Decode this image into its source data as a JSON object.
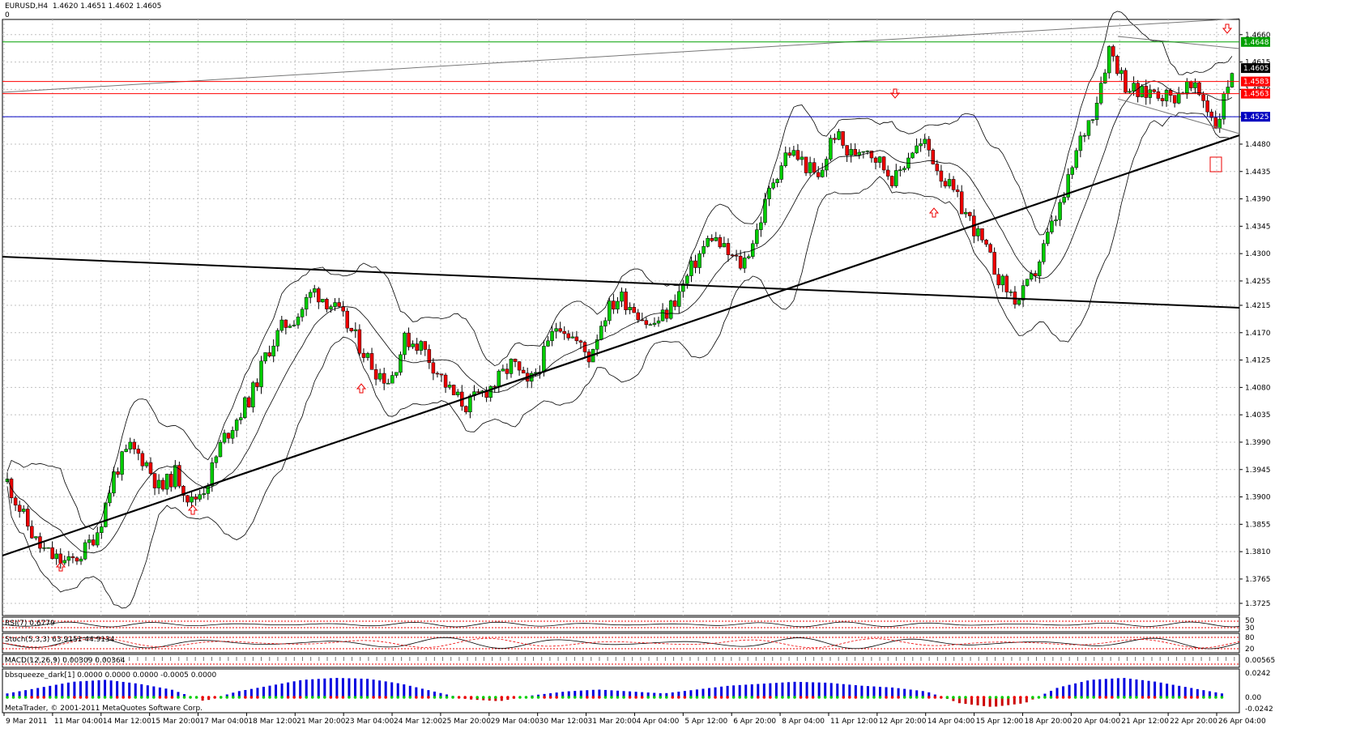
{
  "header": {
    "symbol_line": "EURUSD,H4  1.4620 1.4651 1.4602 1.4605",
    "zero": "0"
  },
  "chart_data": {
    "type": "candlestick",
    "symbol": "EURUSD",
    "timeframe": "H4",
    "last_ohlc": [
      1.462,
      1.4651,
      1.4602,
      1.4605
    ],
    "ylim": [
      1.3705,
      1.4685
    ],
    "y_ticks": [
      "1.4660",
      "1.4615",
      "1.4570",
      "1.4525",
      "1.4480",
      "1.4435",
      "1.4390",
      "1.4345",
      "1.4300",
      "1.4255",
      "1.4215",
      "1.4170",
      "1.4125",
      "1.4080",
      "1.4035",
      "1.3990",
      "1.3945",
      "1.3900",
      "1.3855",
      "1.3810",
      "1.3765",
      "1.3725"
    ],
    "x_ticks": [
      "9 Mar 2011",
      "11 Mar 04:00",
      "14 Mar 12:00",
      "15 Mar 20:00",
      "17 Mar 04:00",
      "18 Mar 12:00",
      "21 Mar 20:00",
      "23 Mar 04:00",
      "24 Mar 12:00",
      "25 Mar 20:00",
      "29 Mar 04:00",
      "30 Mar 12:00",
      "31 Mar 20:00",
      "4 Apr 04:00",
      "5 Apr 12:00",
      "6 Apr 20:00",
      "8 Apr 04:00",
      "11 Apr 12:00",
      "12 Apr 20:00",
      "14 Apr 04:00",
      "15 Apr 12:00",
      "18 Apr 20:00",
      "20 Apr 04:00",
      "21 Apr 12:00",
      "22 Apr 20:00",
      "26 Apr 04:00"
    ],
    "price_close_path": [
      1.3925,
      1.387,
      1.382,
      1.38,
      1.379,
      1.381,
      1.385,
      1.394,
      1.398,
      1.396,
      1.391,
      1.394,
      1.389,
      1.392,
      1.399,
      1.403,
      1.407,
      1.414,
      1.418,
      1.42,
      1.424,
      1.422,
      1.419,
      1.415,
      1.411,
      1.409,
      1.416,
      1.415,
      1.411,
      1.407,
      1.405,
      1.407,
      1.409,
      1.412,
      1.408,
      1.413,
      1.419,
      1.416,
      1.413,
      1.42,
      1.423,
      1.421,
      1.418,
      1.42,
      1.424,
      1.429,
      1.433,
      1.43,
      1.428,
      1.434,
      1.442,
      1.447,
      1.445,
      1.442,
      1.45,
      1.446,
      1.448,
      1.445,
      1.442,
      1.447,
      1.448,
      1.443,
      1.439,
      1.435,
      1.43,
      1.425,
      1.422,
      1.426,
      1.433,
      1.439,
      1.448,
      1.454,
      1.464,
      1.458,
      1.456,
      1.457,
      1.4555,
      1.4575,
      1.456,
      1.451,
      1.4605
    ],
    "horizontal_levels": [
      {
        "value": 1.4648,
        "label": "1.4648",
        "color": "#00a000"
      },
      {
        "value": 1.4605,
        "label": "1.4605",
        "color": "#000000"
      },
      {
        "value": 1.4583,
        "label": "1.4583",
        "color": "#ff0000"
      },
      {
        "value": 1.4563,
        "label": "1.4563",
        "color": "#ff0000"
      },
      {
        "value": 1.4525,
        "label": "1.4525",
        "color": "#0000c0"
      }
    ],
    "colors": {
      "bull": "#00cc00",
      "bear": "#ee0000",
      "wick": "#000000",
      "grid": "#c0c0c0"
    }
  },
  "indicators": {
    "rsi": {
      "label": "RSI(7) 0.6779",
      "levels": [
        "50",
        "30"
      ]
    },
    "stoch": {
      "label": "Stoch(5,3,3) 63.9151 44.9134",
      "levels": [
        "80",
        "20"
      ]
    },
    "macd": {
      "label": "MACD(12,26,9) 0.00309 0.00364",
      "scale": "0.00565"
    },
    "bbsqueeze": {
      "label": "bbsqueeze_dark[1] 0.0000 0.0000 0.0000 -0.0005 0.0000",
      "ticks": [
        "0.0242",
        "0.00",
        "-0.0242"
      ]
    }
  },
  "footer": {
    "copyright": "MetaTrader, © 2001-2011 MetaQuotes Software Corp."
  }
}
